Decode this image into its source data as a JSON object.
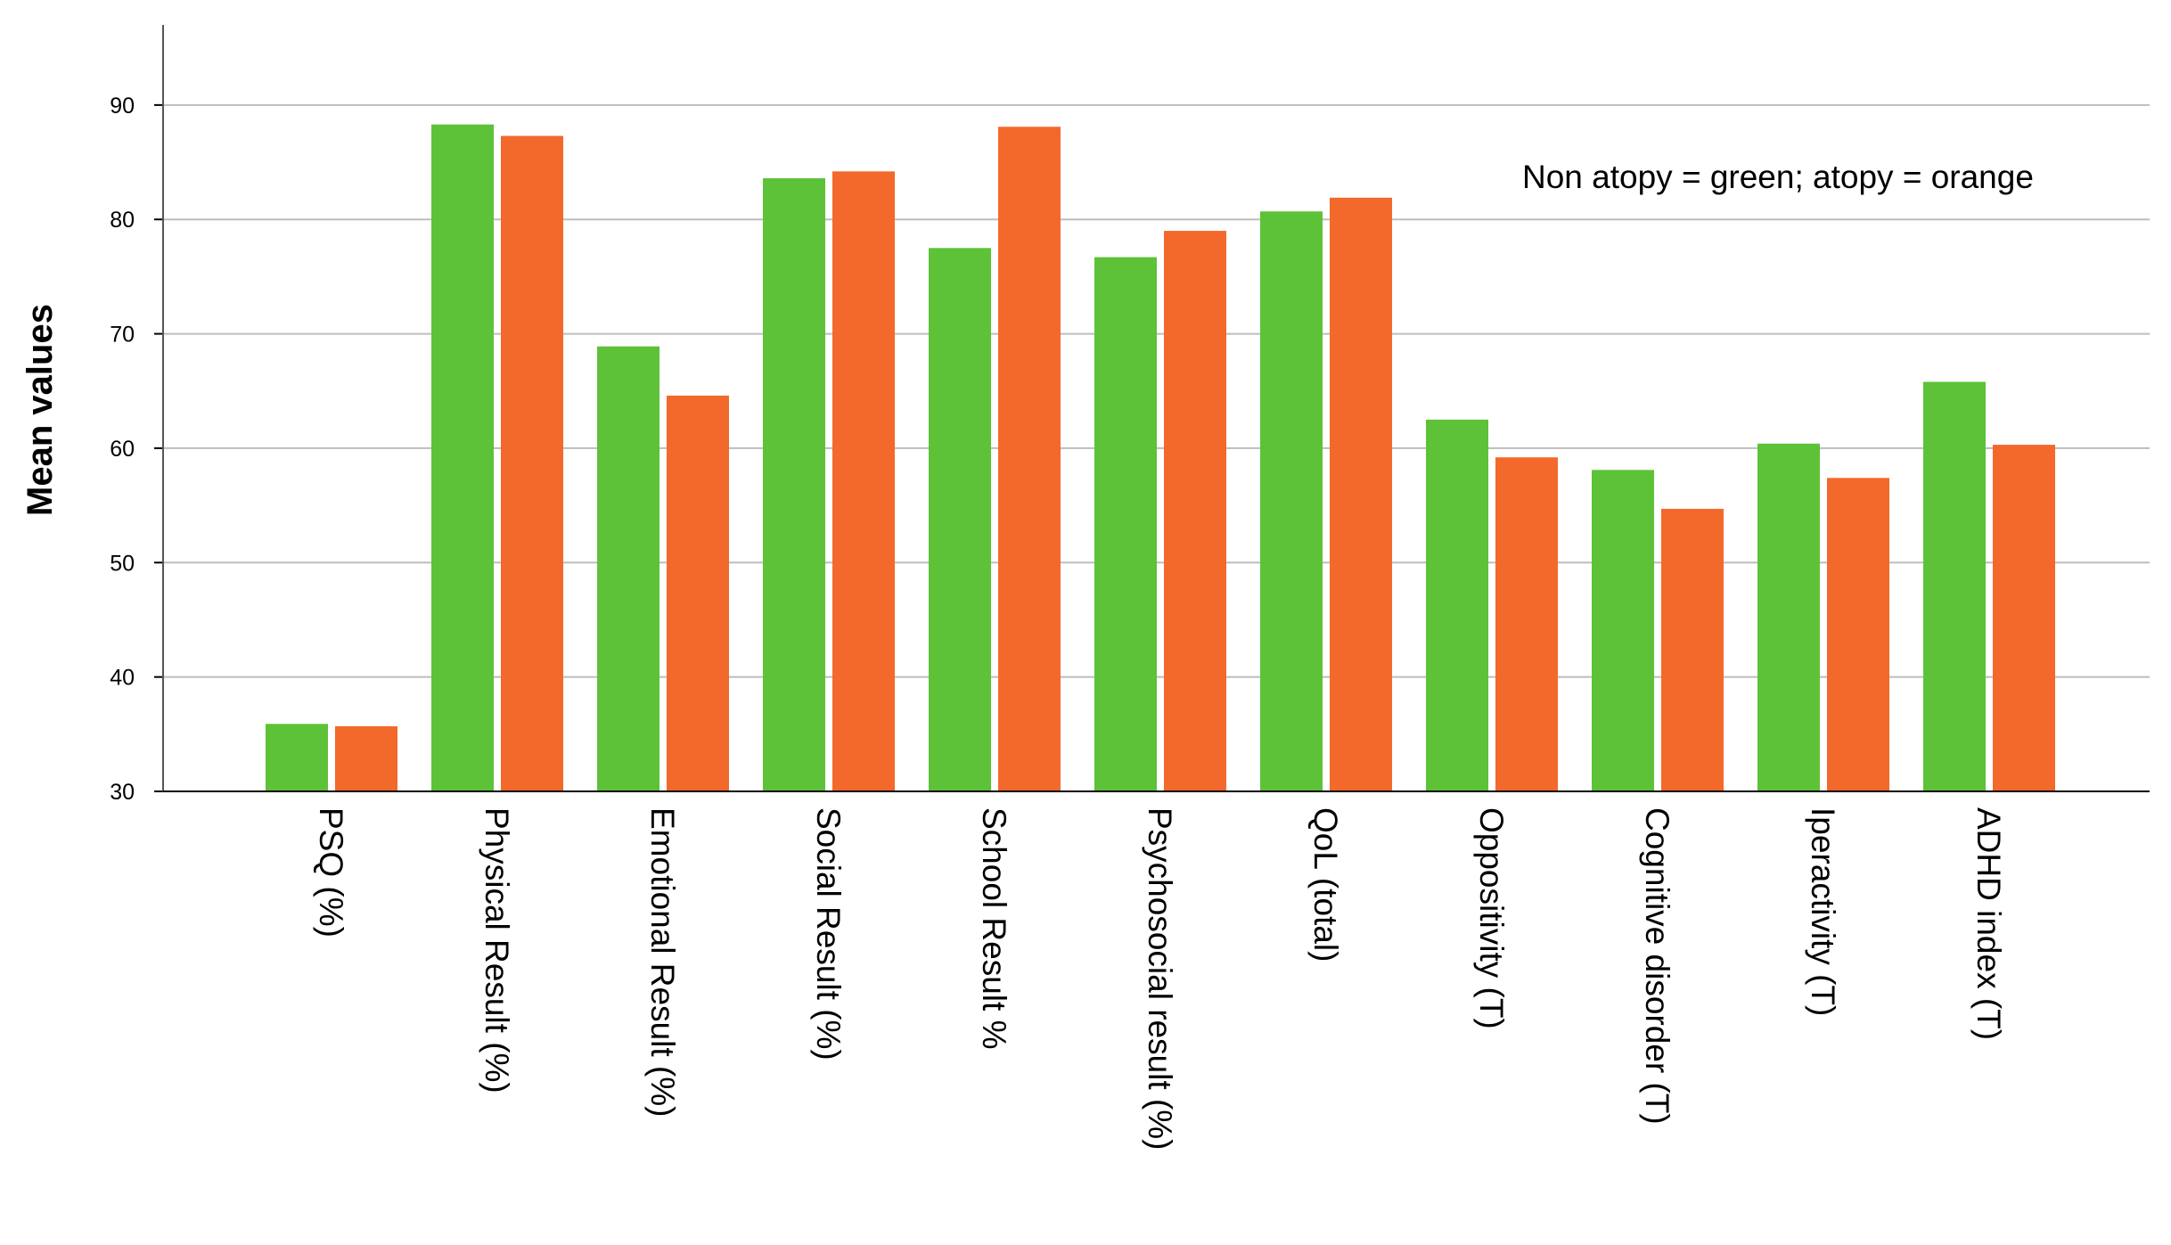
{
  "chart_data": {
    "type": "bar",
    "categories": [
      "PSQ (%)",
      "Physical Result (%)",
      "Emotional Result (%)",
      "Social Result (%)",
      "School Result %",
      "Psychosocial result (%)",
      "QoL (total)",
      "Oppositivity (T)",
      "Cognitive disorder (T)",
      "Iperactivity (T)",
      "ADHD index (T)"
    ],
    "series": [
      {
        "values": [
          35.9,
          88.3,
          68.9,
          83.6,
          77.5,
          76.7,
          80.7,
          62.5,
          58.1,
          60.4,
          65.8
        ],
        "color": "#5dc238"
      },
      {
        "values": [
          35.7,
          87.3,
          64.6,
          84.2,
          88.1,
          79.0,
          81.9,
          59.2,
          54.7,
          57.4,
          60.3
        ],
        "color": "#f3692b"
      }
    ],
    "annotation": "Non atopy = green; atopy = orange",
    "xlabel": "",
    "ylabel": "Mean values",
    "ylim": [
      30,
      97
    ],
    "yticks": [
      30,
      40,
      50,
      60,
      70,
      80,
      90
    ],
    "grid": true,
    "gridColor": "#bdbdbd"
  }
}
